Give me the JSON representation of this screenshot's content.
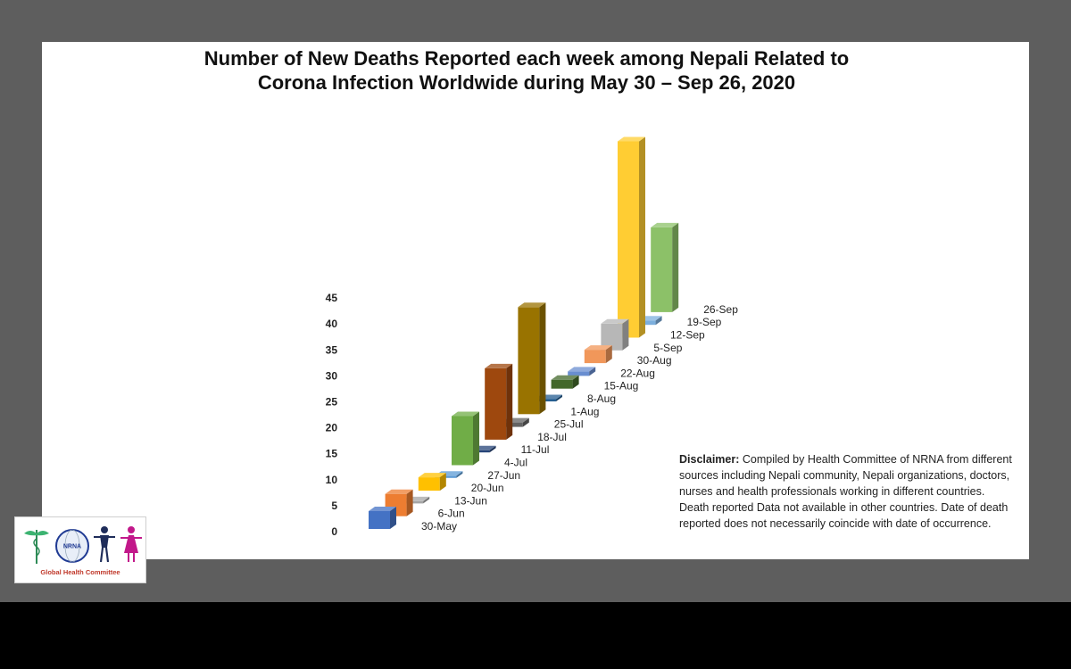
{
  "chart_data": {
    "type": "bar",
    "title_lines": [
      "Number of New Deaths Reported each week among Nepali Related to",
      "Corona Infection Worldwide during May 30 – Sep 26, 2020"
    ],
    "categories": [
      "30-May",
      "6-Jun",
      "13-Jun",
      "20-Jun",
      "27-Jun",
      "4-Jul",
      "11-Jul",
      "18-Jul",
      "25-Jul",
      "1-Aug",
      "8-Aug",
      "15-Aug",
      "22-Aug",
      "30-Aug",
      "5-Sep",
      "12-Sep",
      "19-Sep",
      "26-Sep"
    ],
    "values": [
      4,
      5,
      0,
      3,
      0,
      11,
      0,
      16,
      1,
      24,
      0,
      2,
      1,
      3,
      6,
      44,
      1,
      19
    ],
    "colors": [
      "#4472c4",
      "#ed7d31",
      "#a5a5a5",
      "#ffc000",
      "#5b9bd5",
      "#70ad47",
      "#264478",
      "#9e480e",
      "#636363",
      "#997300",
      "#255e91",
      "#43682b",
      "#698ed0",
      "#f1975a",
      "#b7b7b7",
      "#ffcd33",
      "#7cafdd",
      "#8cc168"
    ],
    "yticks": [
      0,
      5,
      10,
      15,
      20,
      25,
      30,
      35,
      40,
      45
    ],
    "ylim": [
      0,
      45
    ],
    "xlabel": "",
    "ylabel": "",
    "grid": false,
    "legend": "none"
  },
  "disclaimer": {
    "label": "Disclaimer:",
    "text": " Compiled by Health Committee of NRNA from different sources including Nepali community,  Nepali organizations, doctors, nurses and health professionals working in different countries. Death reported Data not available in other countries. Date of death reported does not necessarily coincide with date of occurrence."
  },
  "logo": {
    "name": "NRNA",
    "caption": "Global Health Committee"
  }
}
